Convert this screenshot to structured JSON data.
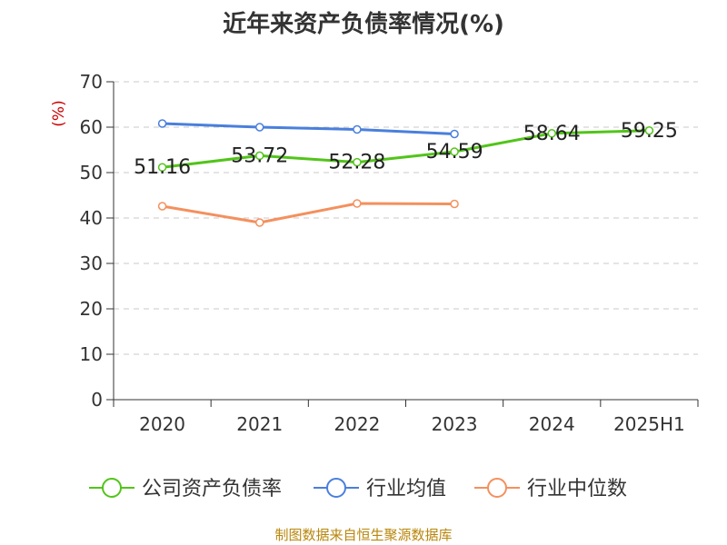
{
  "chart_data": {
    "type": "line",
    "title": "近年来资产负债率情况(%)",
    "ylabel": "(%)",
    "xlabel": "",
    "categories": [
      "2020",
      "2021",
      "2022",
      "2023",
      "2024",
      "2025H1"
    ],
    "ylim": [
      0,
      70
    ],
    "yticks": [
      0,
      10,
      20,
      30,
      40,
      50,
      60,
      70
    ],
    "grid": true,
    "legend_position": "bottom",
    "series": [
      {
        "name": "公司资产负债率",
        "color": "#52c41a",
        "show_labels": true,
        "values": [
          51.16,
          53.72,
          52.28,
          54.59,
          58.64,
          59.25
        ]
      },
      {
        "name": "行业均值",
        "color": "#4a7fdc",
        "show_labels": false,
        "values": [
          60.8,
          60.0,
          59.5,
          58.5,
          null,
          null
        ]
      },
      {
        "name": "行业中位数",
        "color": "#f4905e",
        "show_labels": false,
        "values": [
          42.6,
          39.0,
          43.2,
          43.1,
          null,
          null
        ]
      }
    ],
    "data_labels": [
      "51.16",
      "53.72",
      "52.28",
      "54.59",
      "58.64",
      "59.25"
    ]
  },
  "source": "制图数据来自恒生聚源数据库"
}
